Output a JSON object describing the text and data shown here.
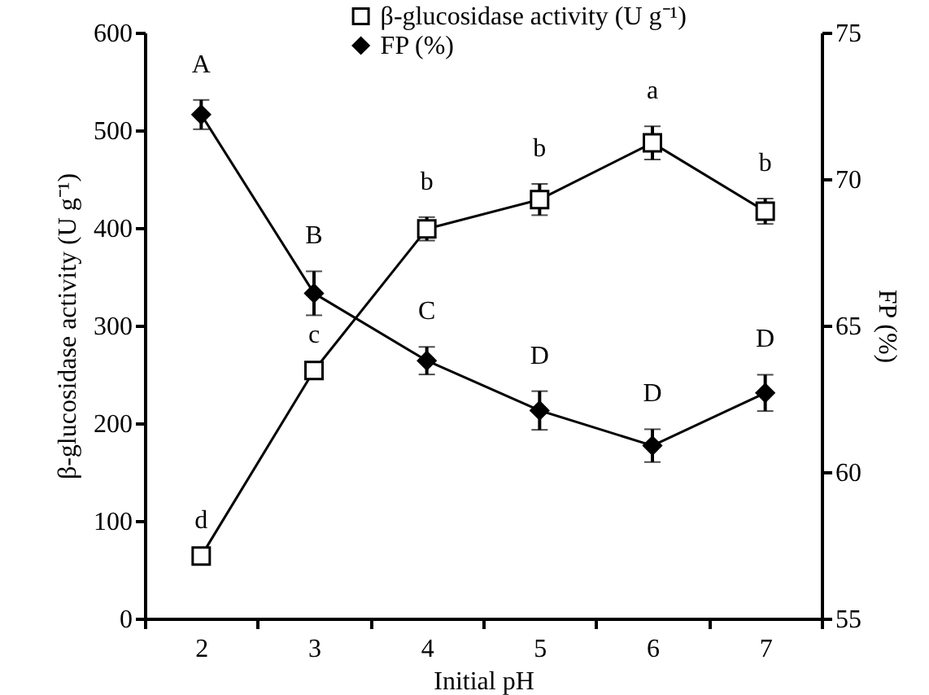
{
  "chart_data": {
    "type": "line",
    "xlabel": "Initial pH",
    "ylabel": "β-glucosidase activity (U g⁻¹)",
    "y2label": "FP (%)",
    "categories": [
      "2",
      "3",
      "4",
      "5",
      "6",
      "7"
    ],
    "series": [
      {
        "name": "β-glucosidase activity (U g⁻¹)",
        "color": "#000000",
        "marker": "square",
        "values": [
          64,
          254,
          399,
          429,
          487,
          417
        ],
        "errors": [
          null,
          null,
          12,
          16,
          17,
          13
        ],
        "value_labels": [
          "d",
          "c",
          "b",
          "b",
          "a",
          "b"
        ]
      },
      {
        "name": "FP (%)",
        "color": "#000000",
        "marker": "diamond",
        "axis": "y2",
        "values": [
          72.2,
          66.1,
          63.8,
          62.1,
          60.9,
          62.7
        ],
        "errors": [
          0.5,
          0.75,
          0.47,
          0.66,
          0.56,
          0.62
        ],
        "value_labels": [
          "A",
          "B",
          "C",
          "D",
          "D",
          "D"
        ]
      }
    ],
    "ylim": [
      0,
      600
    ],
    "yticks": [
      0,
      100,
      200,
      300,
      400,
      500,
      600
    ],
    "y2lim": [
      55,
      75
    ],
    "y2ticks": [
      55,
      60,
      65,
      70,
      75
    ],
    "grid": false,
    "legend": "top",
    "line_style": "solid"
  }
}
